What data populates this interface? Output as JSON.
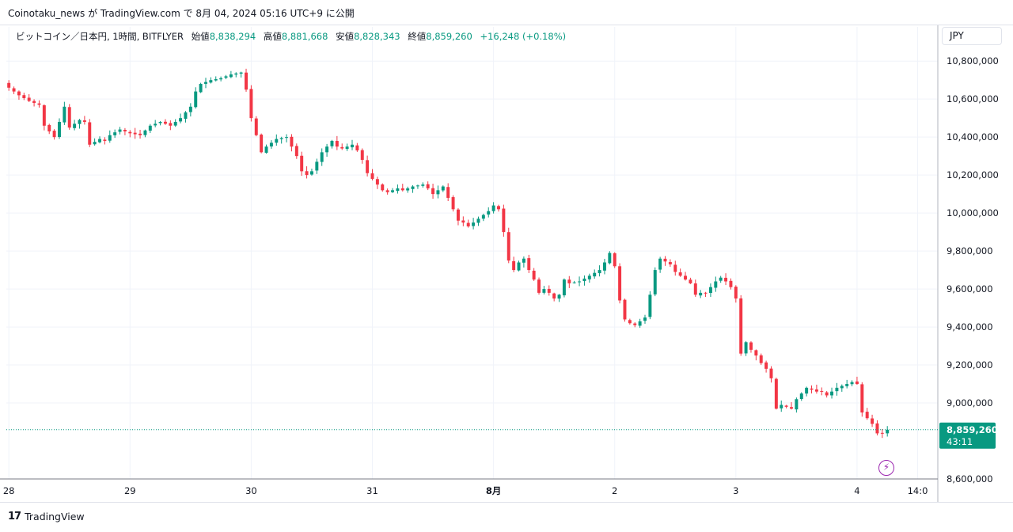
{
  "header": {
    "published": "Coinotaku_news が TradingView.com で 8月 04, 2024 05:16 UTC+9 に公開"
  },
  "legend": {
    "symbol": "ビットコイン／日本円, 1時間, BITFLYER",
    "open_label": "始値",
    "open": "8,838,294",
    "high_label": "高値",
    "high": "8,881,668",
    "low_label": "安値",
    "low": "8,828,343",
    "close_label": "終値",
    "close": "8,859,260",
    "change": "+16,248 (+0.18%)"
  },
  "currency_button": "JPY",
  "brand": "TradingView",
  "brand_logo": "17",
  "colors": {
    "up": "#089981",
    "down": "#f23645",
    "grid": "#f0f3fa",
    "axis_text": "#131722",
    "price_line": "#089981",
    "event_icon": "#9c27b0"
  },
  "event_icon": "lightning-icon",
  "chart_data": {
    "type": "candlestick",
    "interval": "1時間",
    "y_tick_labels": [
      "10,800,000",
      "10,600,000",
      "10,400,000",
      "10,200,000",
      "10,000,000",
      "9,800,000",
      "9,600,000",
      "9,400,000",
      "9,200,000",
      "9,000,000",
      "8,600,000"
    ],
    "y_ticks": [
      10800000,
      10600000,
      10400000,
      10200000,
      10000000,
      9800000,
      9600000,
      9400000,
      9200000,
      9000000,
      8600000
    ],
    "y_range": [
      8600000,
      10880000
    ],
    "x_tick_labels": [
      "28",
      "29",
      "30",
      "31",
      "8月",
      "2",
      "3",
      "4",
      "14:0"
    ],
    "x_ticks_hours": [
      0,
      24,
      48,
      72,
      96,
      120,
      144,
      168,
      180
    ],
    "x_range_hours": [
      -0.5,
      184
    ],
    "last_price": "8,859,260",
    "countdown": "43:11",
    "last_value": 8859260,
    "grid": true,
    "close_path": [
      [
        0,
        10660000
      ],
      [
        2,
        10620000
      ],
      [
        4,
        10590000
      ],
      [
        6,
        10570000
      ],
      [
        7,
        10460000
      ],
      [
        9,
        10400000
      ],
      [
        10,
        10480000
      ],
      [
        11,
        10560000
      ],
      [
        12,
        10450000
      ],
      [
        14,
        10490000
      ],
      [
        15,
        10480000
      ],
      [
        16,
        10360000
      ],
      [
        18,
        10390000
      ],
      [
        19,
        10380000
      ],
      [
        20,
        10410000
      ],
      [
        22,
        10440000
      ],
      [
        24,
        10420000
      ],
      [
        26,
        10410000
      ],
      [
        28,
        10460000
      ],
      [
        30,
        10480000
      ],
      [
        32,
        10460000
      ],
      [
        34,
        10500000
      ],
      [
        36,
        10560000
      ],
      [
        37,
        10640000
      ],
      [
        38,
        10680000
      ],
      [
        40,
        10700000
      ],
      [
        42,
        10710000
      ],
      [
        44,
        10730000
      ],
      [
        46,
        10740000
      ],
      [
        47,
        10650000
      ],
      [
        48,
        10500000
      ],
      [
        50,
        10320000
      ],
      [
        51,
        10350000
      ],
      [
        53,
        10390000
      ],
      [
        55,
        10400000
      ],
      [
        56,
        10350000
      ],
      [
        57,
        10300000
      ],
      [
        58,
        10220000
      ],
      [
        59,
        10200000
      ],
      [
        60,
        10220000
      ],
      [
        61,
        10270000
      ],
      [
        62,
        10320000
      ],
      [
        64,
        10380000
      ],
      [
        65,
        10350000
      ],
      [
        66,
        10340000
      ],
      [
        68,
        10360000
      ],
      [
        69,
        10330000
      ],
      [
        70,
        10280000
      ],
      [
        71,
        10210000
      ],
      [
        72,
        10180000
      ],
      [
        73,
        10150000
      ],
      [
        74,
        10120000
      ],
      [
        75,
        10110000
      ],
      [
        77,
        10130000
      ],
      [
        78,
        10120000
      ],
      [
        80,
        10140000
      ],
      [
        82,
        10150000
      ],
      [
        83,
        10130000
      ],
      [
        84,
        10100000
      ],
      [
        85,
        10120000
      ],
      [
        86,
        10140000
      ],
      [
        87,
        10080000
      ],
      [
        88,
        10020000
      ],
      [
        89,
        9960000
      ],
      [
        90,
        9950000
      ],
      [
        91,
        9930000
      ],
      [
        92,
        9950000
      ],
      [
        93,
        9970000
      ],
      [
        94,
        9990000
      ],
      [
        95,
        10010000
      ],
      [
        96,
        10040000
      ],
      [
        97,
        10020000
      ],
      [
        98,
        9900000
      ],
      [
        99,
        9750000
      ],
      [
        100,
        9700000
      ],
      [
        101,
        9740000
      ],
      [
        102,
        9760000
      ],
      [
        103,
        9700000
      ],
      [
        104,
        9650000
      ],
      [
        105,
        9580000
      ],
      [
        106,
        9600000
      ],
      [
        107,
        9580000
      ],
      [
        108,
        9550000
      ],
      [
        109,
        9570000
      ],
      [
        110,
        9650000
      ],
      [
        111,
        9630000
      ],
      [
        113,
        9640000
      ],
      [
        115,
        9670000
      ],
      [
        117,
        9700000
      ],
      [
        118,
        9740000
      ],
      [
        119,
        9790000
      ],
      [
        120,
        9720000
      ],
      [
        121,
        9540000
      ],
      [
        122,
        9440000
      ],
      [
        123,
        9420000
      ],
      [
        124,
        9410000
      ],
      [
        126,
        9450000
      ],
      [
        127,
        9570000
      ],
      [
        128,
        9700000
      ],
      [
        129,
        9760000
      ],
      [
        131,
        9730000
      ],
      [
        132,
        9690000
      ],
      [
        133,
        9670000
      ],
      [
        135,
        9630000
      ],
      [
        136,
        9570000
      ],
      [
        137,
        9580000
      ],
      [
        138,
        9580000
      ],
      [
        140,
        9640000
      ],
      [
        141,
        9660000
      ],
      [
        142,
        9640000
      ],
      [
        143,
        9610000
      ],
      [
        144,
        9550000
      ],
      [
        145,
        9260000
      ],
      [
        146,
        9320000
      ],
      [
        147,
        9280000
      ],
      [
        148,
        9250000
      ],
      [
        149,
        9210000
      ],
      [
        150,
        9180000
      ],
      [
        151,
        9130000
      ],
      [
        152,
        8970000
      ],
      [
        153,
        8990000
      ],
      [
        154,
        8980000
      ],
      [
        155,
        8970000
      ],
      [
        156,
        9020000
      ],
      [
        157,
        9050000
      ],
      [
        158,
        9080000
      ],
      [
        159,
        9070000
      ],
      [
        160,
        9060000
      ],
      [
        161,
        9060000
      ],
      [
        162,
        9040000
      ],
      [
        163,
        9060000
      ],
      [
        164,
        9080000
      ],
      [
        165,
        9090000
      ],
      [
        166,
        9100000
      ],
      [
        167,
        9110000
      ],
      [
        168,
        9100000
      ],
      [
        169,
        8950000
      ],
      [
        170,
        8920000
      ],
      [
        171,
        8890000
      ],
      [
        172,
        8840000
      ],
      [
        173,
        8838294
      ],
      [
        174,
        8859260
      ]
    ]
  }
}
